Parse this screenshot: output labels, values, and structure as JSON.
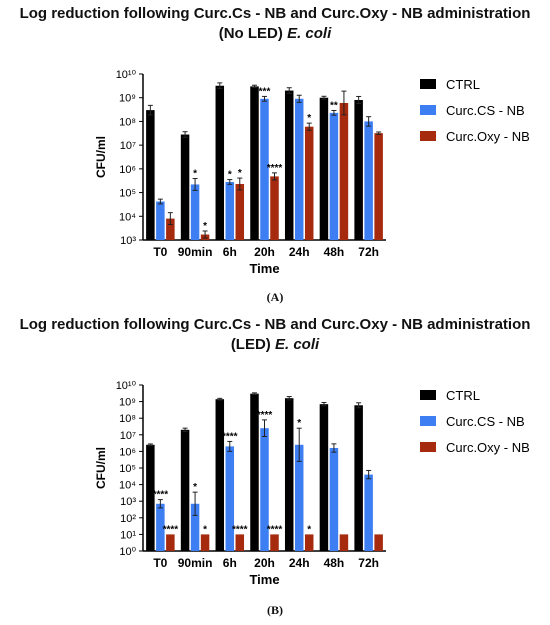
{
  "chart_data": [
    {
      "type": "bar",
      "title_line1": "Log reduction following Curc.Cs - NB and Curc.Oxy - NB administration",
      "title_line2_prefix": "(No LED)",
      "title_line2_organism": "E. coli",
      "xlabel": "Time",
      "ylabel": "CFU/ml",
      "yscale": "log",
      "ylim": [
        1000,
        10000000000
      ],
      "yticks": [
        "10³",
        "10⁴",
        "10⁵",
        "10⁶",
        "10⁷",
        "10⁸",
        "10⁹",
        "10¹⁰"
      ],
      "categories": [
        "T0",
        "90min",
        "6h",
        "20h",
        "24h",
        "48h",
        "72h"
      ],
      "legend_position": "right",
      "series": [
        {
          "name": "CTRL",
          "color": "#000000",
          "values": [
            300000000,
            28000000,
            3200000000,
            3000000000,
            2000000000,
            1000000000,
            800000000
          ],
          "errors_log": [
            0.2,
            0.12,
            0.12,
            0.05,
            0.12,
            0.06,
            0.15
          ]
        },
        {
          "name": "Curc.CS - NB",
          "color": "#3d7ef2",
          "values": [
            42000,
            220000,
            280000,
            900000000,
            900000000,
            230000000,
            100000000
          ],
          "errors_log": [
            0.1,
            0.25,
            0.1,
            0.1,
            0.15,
            0.1,
            0.2
          ],
          "significance": [
            "",
            "*",
            "*",
            "***",
            "",
            "**",
            ""
          ]
        },
        {
          "name": "Curc.Oxy - NB",
          "color": "#a52a0e",
          "values": [
            8000,
            1700,
            230000,
            480000,
            60000000,
            600000000,
            32000000
          ],
          "errors_log": [
            0.25,
            0.15,
            0.25,
            0.15,
            0.15,
            0.5,
            0.05
          ],
          "significance": [
            "",
            "*",
            "*",
            "****",
            "*",
            "",
            ""
          ]
        }
      ],
      "panel_label": "(A)"
    },
    {
      "type": "bar",
      "title_line1": "Log reduction following Curc.Cs - NB and Curc.Oxy - NB administration",
      "title_line2_prefix": "(LED)",
      "title_line2_organism": "E. coli",
      "xlabel": "Time",
      "ylabel": "CFU/ml",
      "yscale": "log",
      "ylim": [
        1,
        10000000000
      ],
      "yticks": [
        "10⁰",
        "10¹",
        "10²",
        "10³",
        "10⁴",
        "10⁵",
        "10⁶",
        "10⁷",
        "10⁸",
        "10⁹",
        "10¹⁰"
      ],
      "categories": [
        "T0",
        "90min",
        "6h",
        "20h",
        "24h",
        "48h",
        "72h"
      ],
      "legend_position": "right",
      "series": [
        {
          "name": "CTRL",
          "color": "#000000",
          "values": [
            2500000,
            20000000,
            1400000000,
            3000000000,
            1600000000,
            700000000,
            600000000
          ],
          "errors_log": [
            0.05,
            0.1,
            0.05,
            0.05,
            0.1,
            0.1,
            0.15
          ]
        },
        {
          "name": "Curc.CS - NB",
          "color": "#3d7ef2",
          "values": [
            700,
            700,
            2000000,
            25000000,
            2500000,
            1600000,
            40000
          ],
          "errors_log": [
            0.25,
            0.7,
            0.3,
            0.5,
            1.0,
            0.25,
            0.25
          ],
          "significance": [
            "****",
            "*",
            "****",
            "****",
            "*",
            "",
            ""
          ]
        },
        {
          "name": "Curc.Oxy - NB",
          "color": "#a52a0e",
          "values": [
            10,
            10,
            10,
            10,
            10,
            10,
            10
          ],
          "errors_log": [
            0,
            0,
            0,
            0,
            0,
            0,
            0
          ],
          "significance": [
            "****",
            "*",
            "****",
            "****",
            "*",
            "",
            ""
          ]
        }
      ],
      "panel_label": "(B)"
    }
  ]
}
